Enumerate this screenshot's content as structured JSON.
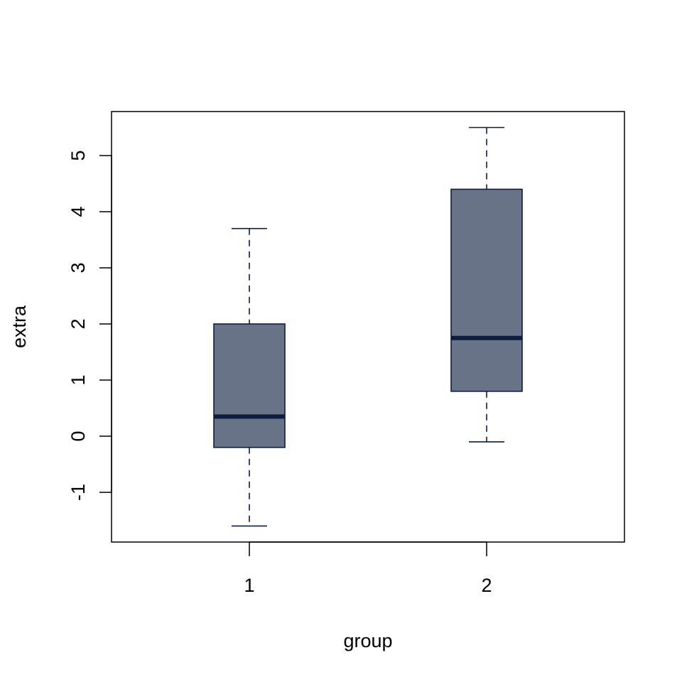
{
  "chart_data": {
    "type": "boxplot",
    "categories": [
      "1",
      "2"
    ],
    "xlabel": "group",
    "ylabel": "extra",
    "ylim": [
      -1.8,
      5.8
    ],
    "yticks": [
      -1,
      0,
      1,
      2,
      3,
      4,
      5
    ],
    "ytick_labels": [
      "-1",
      "0",
      "1",
      "2",
      "3",
      "4",
      "5"
    ],
    "grid": false,
    "legend": "none",
    "boxes": [
      {
        "category": "1",
        "whisker_low": -1.6,
        "q1": -0.2,
        "median": 0.35,
        "q3": 2.0,
        "whisker_high": 3.7
      },
      {
        "category": "2",
        "whisker_low": -0.1,
        "q1": 0.8,
        "median": 1.75,
        "q3": 4.4,
        "whisker_high": 5.5
      }
    ],
    "colors": {
      "box_fill": "#687387",
      "box_stroke": "#0c1d42",
      "median": "#0c1d42",
      "whisker": "#0c1d42",
      "axis": "#000000"
    }
  }
}
